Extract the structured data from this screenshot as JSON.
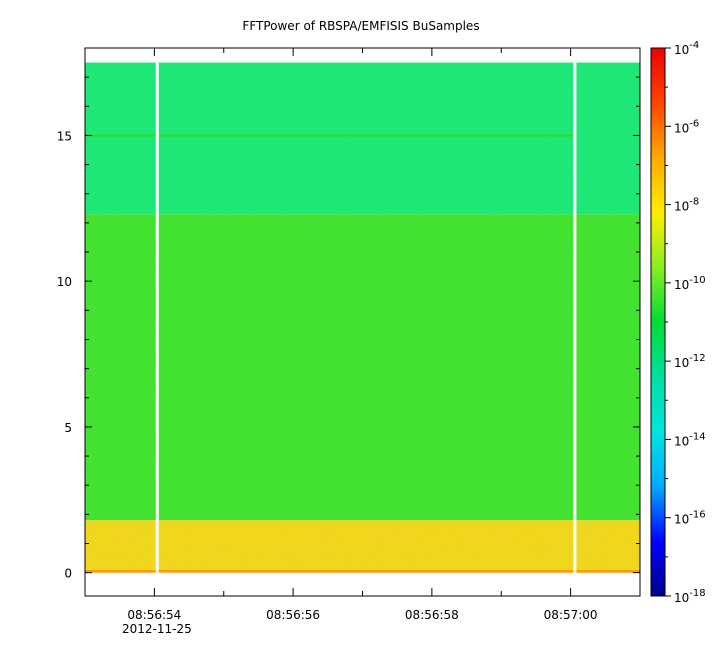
{
  "chart_data": {
    "type": "heatmap",
    "title": "FFTPower of RBSPA/EMFISIS  BuSamples",
    "xlabel": "",
    "ylabel": "",
    "date_label": "2012-11-25",
    "x_range": [
      "08:56:53",
      "08:57:01"
    ],
    "x_ticks": [
      "08:56:54",
      "08:56:56",
      "08:56:58",
      "08:57:00"
    ],
    "y_range": [
      -0.8,
      18.0
    ],
    "y_ticks": [
      0,
      5,
      10,
      15
    ],
    "colorbar": {
      "scale": "log",
      "range": [
        "1e-18",
        "1e-4"
      ],
      "tick_labels": [
        {
          "base": "10",
          "exp": "-4"
        },
        {
          "base": "10",
          "exp": "-6"
        },
        {
          "base": "10",
          "exp": "-8"
        },
        {
          "base": "10",
          "exp": "-10"
        },
        {
          "base": "10",
          "exp": "-12"
        },
        {
          "base": "10",
          "exp": "-14"
        },
        {
          "base": "10",
          "exp": "-16"
        },
        {
          "base": "10",
          "exp": "-18"
        }
      ],
      "colors": [
        "#00008b",
        "#0000ff",
        "#00aaff",
        "#00e5e0",
        "#00e0a0",
        "#00dd33",
        "#88ee22",
        "#ffee00",
        "#ffaa00",
        "#ff4400",
        "#ee0000"
      ]
    },
    "bands": [
      {
        "y_from": 0.0,
        "y_to": 0.1,
        "approx_power": "1e-7",
        "color": "#ff9a00"
      },
      {
        "y_from": 0.1,
        "y_to": 1.8,
        "approx_power": "1e-8",
        "color": "#f2d818"
      },
      {
        "y_from": 1.8,
        "y_to": 12.3,
        "approx_power": "1e-10",
        "color": "#3fe42c"
      },
      {
        "y_from": 12.3,
        "y_to": 17.5,
        "approx_power": "1e-11",
        "color": "#18ea74"
      }
    ],
    "gaps": [
      {
        "start": "08:56:54.02",
        "end": "08:56:54.06"
      },
      {
        "start": "08:57:00.04",
        "end": "08:57:00.08"
      }
    ],
    "features": [
      {
        "type": "horizontal line",
        "y": 15.0,
        "color": "#2fd82a"
      }
    ]
  }
}
